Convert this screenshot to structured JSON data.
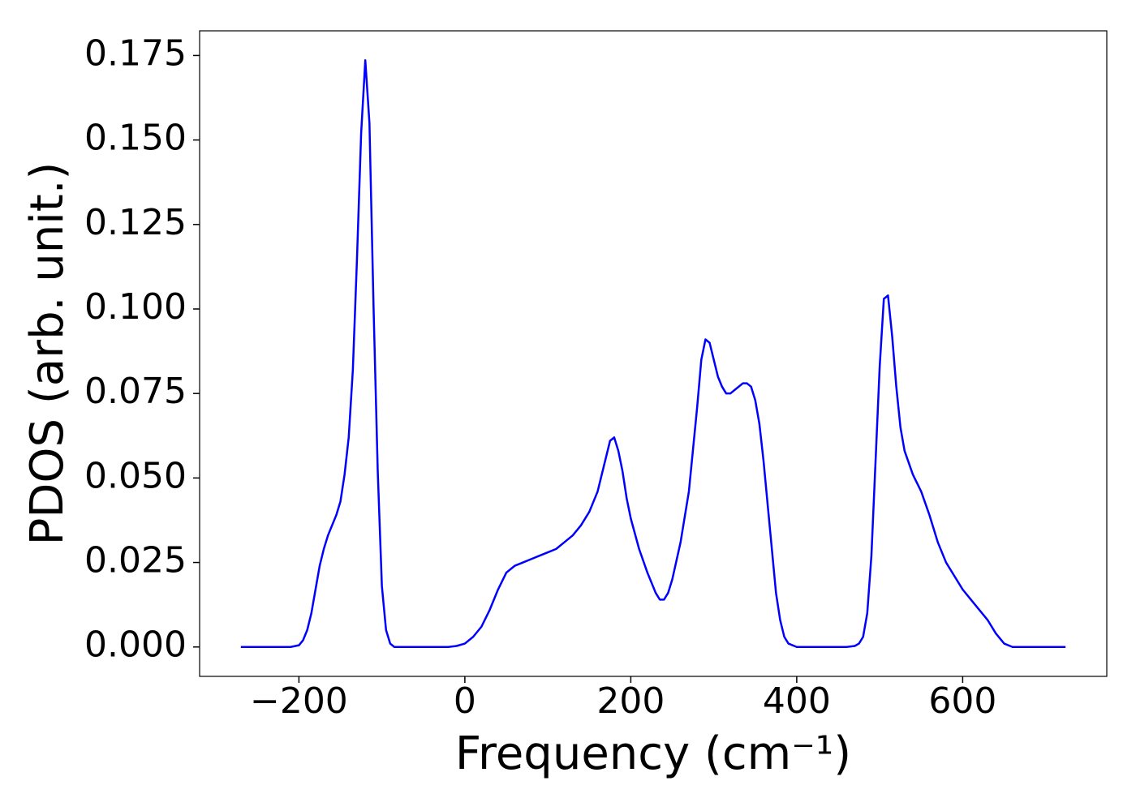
{
  "chart_data": {
    "type": "line",
    "x_label": "Frequency (cm⁻¹)",
    "y_label": "PDOS (arb. unit.)",
    "x": [
      -270,
      -210,
      -200,
      -195,
      -190,
      -185,
      -180,
      -175,
      -170,
      -165,
      -160,
      -155,
      -150,
      -145,
      -140,
      -135,
      -130,
      -125,
      -120,
      -115,
      -110,
      -105,
      -100,
      -95,
      -90,
      -85,
      -20,
      -10,
      0,
      10,
      20,
      30,
      40,
      50,
      60,
      70,
      80,
      90,
      100,
      110,
      120,
      130,
      140,
      150,
      160,
      170,
      175,
      180,
      185,
      190,
      195,
      200,
      210,
      220,
      230,
      235,
      240,
      245,
      250,
      260,
      270,
      280,
      285,
      290,
      295,
      305,
      310,
      315,
      320,
      325,
      335,
      340,
      345,
      350,
      355,
      360,
      370,
      375,
      380,
      385,
      390,
      400,
      460,
      470,
      475,
      480,
      485,
      490,
      495,
      500,
      505,
      510,
      515,
      520,
      525,
      530,
      540,
      550,
      560,
      570,
      580,
      590,
      600,
      610,
      620,
      630,
      640,
      650,
      660,
      680,
      724
    ],
    "series": [
      {
        "name": "PDOS",
        "color": "#0000ff",
        "values": [
          0,
          0,
          0.0005,
          0.002,
          0.005,
          0.01,
          0.017,
          0.024,
          0.029,
          0.033,
          0.036,
          0.039,
          0.043,
          0.051,
          0.062,
          0.082,
          0.115,
          0.152,
          0.1736,
          0.155,
          0.1,
          0.052,
          0.018,
          0.005,
          0.001,
          0,
          0,
          0.0003,
          0.001,
          0.003,
          0.006,
          0.011,
          0.017,
          0.022,
          0.024,
          0.025,
          0.026,
          0.027,
          0.028,
          0.029,
          0.031,
          0.033,
          0.036,
          0.04,
          0.046,
          0.056,
          0.061,
          0.062,
          0.058,
          0.052,
          0.044,
          0.038,
          0.029,
          0.022,
          0.016,
          0.014,
          0.014,
          0.016,
          0.02,
          0.031,
          0.046,
          0.071,
          0.085,
          0.091,
          0.09,
          0.08,
          0.077,
          0.075,
          0.075,
          0.076,
          0.078,
          0.078,
          0.077,
          0.073,
          0.066,
          0.055,
          0.029,
          0.016,
          0.008,
          0.003,
          0.001,
          0,
          0,
          0.0003,
          0.001,
          0.003,
          0.01,
          0.027,
          0.055,
          0.083,
          0.103,
          0.104,
          0.092,
          0.077,
          0.065,
          0.058,
          0.051,
          0.046,
          0.039,
          0.031,
          0.025,
          0.021,
          0.017,
          0.014,
          0.011,
          0.008,
          0.004,
          0.001,
          0,
          0,
          0
        ]
      }
    ],
    "xlim": [
      -319.7,
      773.7
    ],
    "ylim": [
      -0.0087,
      0.1823
    ],
    "xticks": [
      {
        "value": -200,
        "label": "−200"
      },
      0,
      200,
      400,
      600
    ],
    "yticks": [
      {
        "value": 0,
        "label": "0.000"
      },
      {
        "value": 0.025,
        "label": "0.025"
      },
      {
        "value": 0.05,
        "label": "0.050"
      },
      {
        "value": 0.075,
        "label": "0.075"
      },
      {
        "value": 0.1,
        "label": "0.100"
      },
      {
        "value": 0.125,
        "label": "0.125"
      },
      {
        "value": 0.15,
        "label": "0.150"
      },
      {
        "value": 0.175,
        "label": "0.175"
      }
    ],
    "grid": false
  }
}
